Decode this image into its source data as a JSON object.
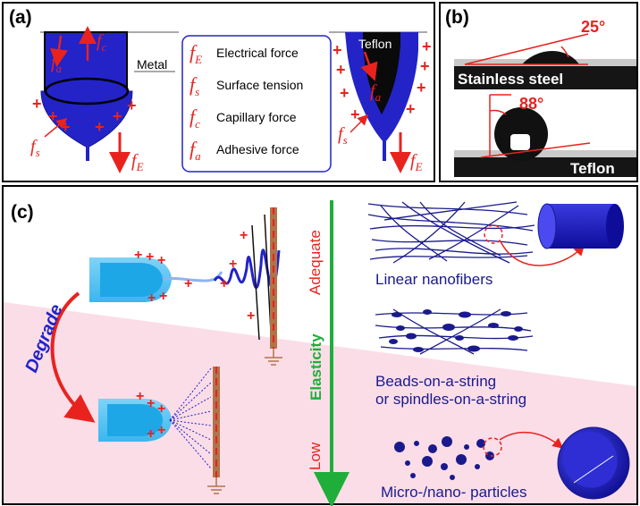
{
  "panel_a": {
    "label": "(a)",
    "metal_label": "Metal",
    "teflon_label": "Teflon",
    "legend": [
      {
        "sym": "f",
        "sub": "E",
        "text": "Electrical force"
      },
      {
        "sym": "f",
        "sub": "s",
        "text": "Surface tension"
      },
      {
        "sym": "f",
        "sub": "c",
        "text": "Capillary force"
      },
      {
        "sym": "f",
        "sub": "a",
        "text": "Adhesive force"
      }
    ],
    "forces": {
      "fc": {
        "sym": "f",
        "sub": "c"
      },
      "fa_left": {
        "sym": "f",
        "sub": "a"
      },
      "fs_left": {
        "sym": "f",
        "sub": "s"
      },
      "fE_left": {
        "sym": "f",
        "sub": "E"
      },
      "fa_right": {
        "sym": "f",
        "sub": "a"
      },
      "fs_right": {
        "sym": "f",
        "sub": "s"
      },
      "fE_right": {
        "sym": "f",
        "sub": "E"
      }
    }
  },
  "panel_b": {
    "label": "(b)",
    "angle_top": "25°",
    "substrate_top": "Stainless steel",
    "angle_bottom": "88°",
    "substrate_bottom": "Teflon"
  },
  "panel_c": {
    "label": "(c)",
    "degrade": "Degrade",
    "adequate": "Adequate",
    "elasticity": "Elasticity",
    "low": "Low",
    "linear": "Linear nanofibers",
    "beads_line1": "Beads-on-a-string",
    "beads_line2": "or spindles-on-a-string",
    "particles": "Micro-/nano- particles"
  },
  "colors": {
    "blue": "#2323c8",
    "red": "#e8231e",
    "green": "#1fae3a",
    "pink": "#fbdde8",
    "navy": "#1a1a8c"
  }
}
